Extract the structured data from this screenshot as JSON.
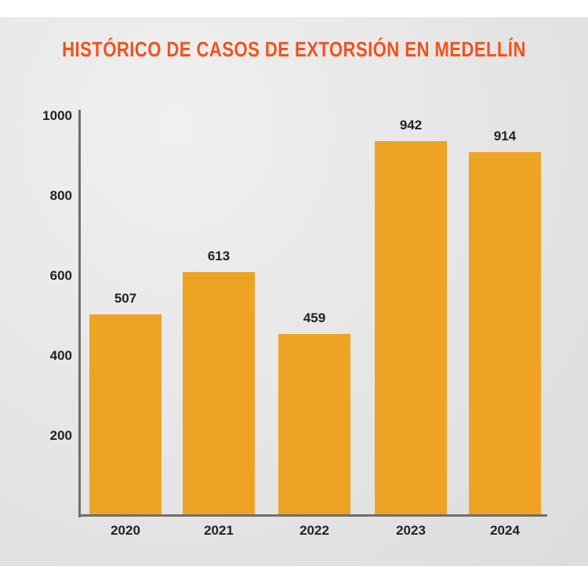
{
  "chart_data": {
    "type": "bar",
    "title": "HISTÓRICO DE CASOS DE EXTORSIÓN EN MEDELLÍN",
    "categories": [
      "2020",
      "2021",
      "2022",
      "2023",
      "2024"
    ],
    "values": [
      507,
      613,
      459,
      942,
      914
    ],
    "yticks": [
      "200",
      "400",
      "600",
      "800",
      "1000"
    ],
    "ylim": [
      0,
      1000
    ],
    "xlabel": "",
    "ylabel": "",
    "grid": false,
    "bar_color": "#efa324",
    "title_color": "#f2521c"
  }
}
